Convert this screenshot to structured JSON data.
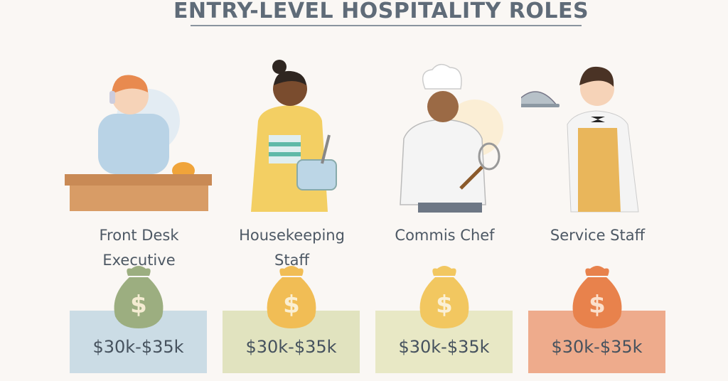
{
  "title": "ENTRY-LEVEL HOSPITALITY ROLES",
  "roles": [
    {
      "name_line1": "Front Desk",
      "name_line2": "Executive",
      "salary": "$30k-$35k",
      "box_color": "#cbdce5",
      "bag_color": "#9cae80",
      "illustration": "receptionist-on-phone-with-desk-bell"
    },
    {
      "name_line1": "Housekeeping",
      "name_line2": "Staff",
      "salary": "$30k-$35k",
      "box_color": "#e1e3bf",
      "bag_color": "#f1bd55",
      "illustration": "housekeeper-with-bucket"
    },
    {
      "name_line1": "Commis Chef",
      "name_line2": "",
      "salary": "$30k-$35k",
      "box_color": "#e8e8c5",
      "bag_color": "#f2c760",
      "illustration": "chef-with-whisk"
    },
    {
      "name_line1": "Service Staff",
      "name_line2": "",
      "salary": "$30k-$35k",
      "box_color": "#eeab8c",
      "bag_color": "#e8824c",
      "illustration": "waiter-with-cloche"
    }
  ],
  "bag_symbol": "$"
}
